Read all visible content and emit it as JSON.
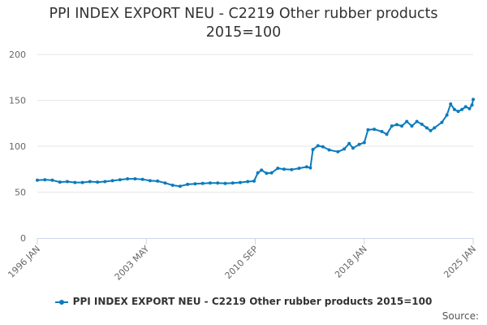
{
  "title_line1": "PPI INDEX EXPORT NEU - C2219 Other rubber products",
  "title_line2": "2015=100",
  "credits": "Source:",
  "colors": {
    "series": "#0a7bbd",
    "grid": "#e6e6e6",
    "axis": "#ccd6eb",
    "text": "#666666"
  },
  "chart_data": {
    "type": "line",
    "title": "PPI INDEX EXPORT NEU - C2219 Other rubber products 2015=100",
    "xlabel": "",
    "ylabel": "",
    "ylim": [
      0,
      200
    ],
    "yticks": [
      0,
      50,
      100,
      150,
      200
    ],
    "xlim": [
      "1996-01",
      "2025-01"
    ],
    "xtick_labels": [
      "1996 JAN",
      "2003 MAY",
      "2010 SEP",
      "2018 JAN",
      "2025 JAN"
    ],
    "grid": true,
    "legend": "bottom",
    "series": [
      {
        "name": "PPI INDEX EXPORT NEU - C2219 Other rubber products 2015=100",
        "points": [
          [
            "1996-01",
            63
          ],
          [
            "1996-07",
            63.5
          ],
          [
            "1997-01",
            63
          ],
          [
            "1997-07",
            61
          ],
          [
            "1998-01",
            61.5
          ],
          [
            "1998-07",
            60.5
          ],
          [
            "1999-01",
            60.5
          ],
          [
            "1999-07",
            61.5
          ],
          [
            "2000-01",
            61
          ],
          [
            "2000-07",
            61.5
          ],
          [
            "2001-01",
            62.5
          ],
          [
            "2001-07",
            63.5
          ],
          [
            "2002-01",
            64.5
          ],
          [
            "2002-07",
            64.5
          ],
          [
            "2003-01",
            64
          ],
          [
            "2003-07",
            62.5
          ],
          [
            "2004-01",
            62
          ],
          [
            "2004-07",
            60
          ],
          [
            "2005-01",
            57.5
          ],
          [
            "2005-07",
            56.5
          ],
          [
            "2006-01",
            58.5
          ],
          [
            "2006-07",
            59
          ],
          [
            "2007-01",
            59.5
          ],
          [
            "2007-07",
            60
          ],
          [
            "2008-01",
            60
          ],
          [
            "2008-07",
            59.5
          ],
          [
            "2009-01",
            60
          ],
          [
            "2009-07",
            60.5
          ],
          [
            "2010-01",
            61.5
          ],
          [
            "2010-06",
            62
          ],
          [
            "2010-09",
            71
          ],
          [
            "2010-12",
            74
          ],
          [
            "2011-04",
            70.5
          ],
          [
            "2011-08",
            71
          ],
          [
            "2012-01",
            76
          ],
          [
            "2012-06",
            75
          ],
          [
            "2012-12",
            74.5
          ],
          [
            "2013-06",
            76
          ],
          [
            "2013-12",
            77.5
          ],
          [
            "2014-03",
            76.5
          ],
          [
            "2014-05",
            96.5
          ],
          [
            "2014-09",
            100.5
          ],
          [
            "2015-01",
            99.5
          ],
          [
            "2015-06",
            96
          ],
          [
            "2016-01",
            94
          ],
          [
            "2016-06",
            97
          ],
          [
            "2016-10",
            103
          ],
          [
            "2017-01",
            98
          ],
          [
            "2017-06",
            102
          ],
          [
            "2017-10",
            104
          ],
          [
            "2018-01",
            118
          ],
          [
            "2018-06",
            118.5
          ],
          [
            "2018-12",
            116
          ],
          [
            "2019-04",
            113
          ],
          [
            "2019-08",
            122
          ],
          [
            "2019-12",
            123.5
          ],
          [
            "2020-04",
            122
          ],
          [
            "2020-08",
            127
          ],
          [
            "2020-12",
            122
          ],
          [
            "2021-04",
            127
          ],
          [
            "2021-08",
            124
          ],
          [
            "2021-12",
            120
          ],
          [
            "2022-03",
            117
          ],
          [
            "2022-06",
            120
          ],
          [
            "2022-12",
            126
          ],
          [
            "2023-04",
            134
          ],
          [
            "2023-07",
            146
          ],
          [
            "2023-10",
            140
          ],
          [
            "2024-01",
            138
          ],
          [
            "2024-04",
            140
          ],
          [
            "2024-07",
            143
          ],
          [
            "2024-10",
            141
          ],
          [
            "2024-12",
            145
          ],
          [
            "2025-01",
            151
          ]
        ]
      }
    ]
  }
}
